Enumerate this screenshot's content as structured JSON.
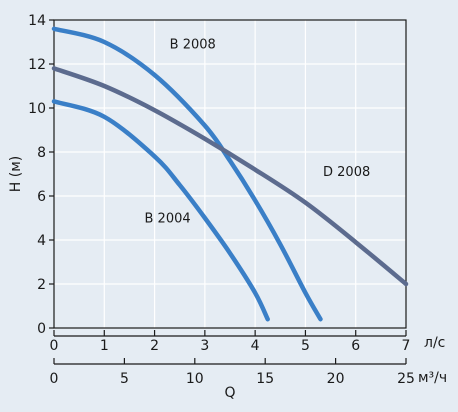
{
  "chart_data": {
    "type": "line",
    "ylabel": "H (м)",
    "xlabel": "Q",
    "x_unit_primary": "л/с",
    "x_unit_secondary": "м³/ч",
    "ylim": [
      0,
      14
    ],
    "xlim": [
      0,
      7
    ],
    "x2lim": [
      0,
      25
    ],
    "yticks": [
      0,
      2,
      4,
      6,
      8,
      10,
      12,
      14
    ],
    "xticks": [
      0,
      1,
      2,
      3,
      4,
      5,
      6,
      7
    ],
    "x2ticks": [
      0,
      5,
      10,
      15,
      20,
      25
    ],
    "grid": true,
    "series": [
      {
        "name": "B 2008",
        "color": "#3a7fc7",
        "x": [
          0,
          1,
          2,
          3,
          3.5,
          4,
          4.5,
          5,
          5.3
        ],
        "y": [
          13.6,
          13.0,
          11.5,
          9.2,
          7.6,
          5.8,
          3.8,
          1.6,
          0.4
        ]
      },
      {
        "name": "B 2004",
        "color": "#3a7fc7",
        "x": [
          0,
          1,
          2,
          2.5,
          3,
          3.5,
          4,
          4.25
        ],
        "y": [
          10.3,
          9.6,
          7.8,
          6.5,
          5.0,
          3.4,
          1.6,
          0.4
        ]
      },
      {
        "name": "D 2008",
        "color": "#5c6b8e",
        "x": [
          0,
          1,
          2,
          3,
          4,
          5,
          6,
          7
        ],
        "y": [
          11.8,
          11.0,
          9.9,
          8.6,
          7.2,
          5.7,
          3.9,
          2.0
        ]
      }
    ],
    "annotations": [
      {
        "text": "B 2008",
        "x": 2.3,
        "y": 12.7
      },
      {
        "text": "D 2008",
        "x": 5.35,
        "y": 6.9
      },
      {
        "text": "B 2004",
        "x": 1.8,
        "y": 4.8
      }
    ]
  }
}
